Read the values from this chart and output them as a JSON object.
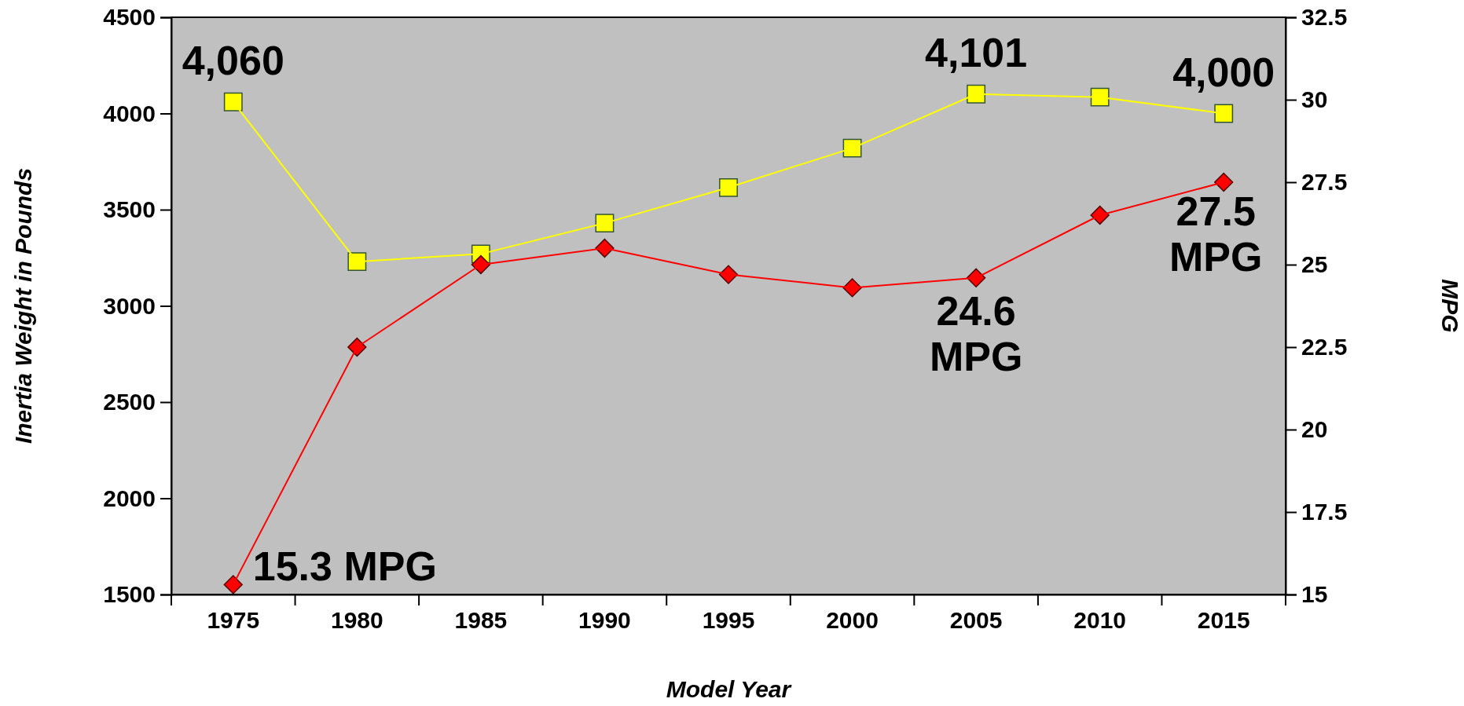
{
  "chart_data": {
    "type": "line",
    "xlabel": "Model Year",
    "ylabel": "Inertia Weight in Pounds",
    "y2label": "MPG",
    "categories": [
      "1975",
      "1980",
      "1985",
      "1990",
      "1995",
      "2000",
      "2005",
      "2010",
      "2015"
    ],
    "series": [
      {
        "color": "#ffff00",
        "marker": "square",
        "values": [
          4060,
          3230,
          3270,
          3430,
          3615,
          3820,
          4101,
          4085,
          4000
        ]
      },
      {
        "color": "#ff0000",
        "marker": "diamond",
        "axis": "y2",
        "values": [
          15.3,
          22.5,
          25.0,
          25.5,
          24.7,
          24.3,
          24.6,
          26.5,
          27.5
        ]
      }
    ],
    "ylim": [
      1500,
      4500
    ],
    "yticks": [
      1500,
      2000,
      2500,
      3000,
      3500,
      4000,
      4500
    ],
    "y2lim": [
      15,
      32.5
    ],
    "y2ticks": [
      15,
      17.5,
      20,
      22.5,
      25,
      27.5,
      30,
      32.5
    ],
    "grid": false,
    "annotations": [
      {
        "text": "4,060",
        "x": "1975",
        "y": 4060
      },
      {
        "text": "4,101",
        "x": "2005",
        "y": 4101
      },
      {
        "text": "4,000",
        "x": "2015",
        "y": 4000
      },
      "15.3 MPG",
      "24.6\nMPG",
      "27.5\nMPG"
    ]
  }
}
